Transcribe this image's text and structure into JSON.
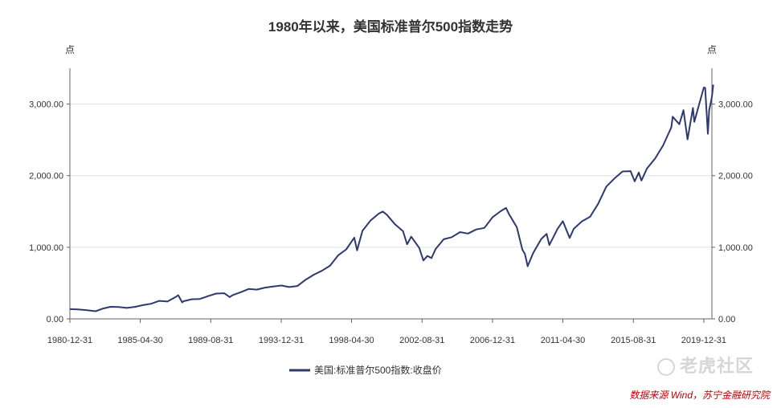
{
  "chart_data": {
    "type": "line",
    "title": "1980年以来，美国标准普尔500指数走势",
    "y_unit_left": "点",
    "y_unit_right": "点",
    "ylim": [
      0,
      3500
    ],
    "y_ticks": [
      0,
      1000,
      2000,
      3000
    ],
    "y_tick_labels": [
      "0.00",
      "1,000.00",
      "2,000.00",
      "3,000.00"
    ],
    "x_range": [
      "1980-12-31",
      "2020-06-30"
    ],
    "x_ticks": [
      "1980-12-31",
      "1985-04-30",
      "1989-08-31",
      "1993-12-31",
      "1998-04-30",
      "2002-08-31",
      "2006-12-31",
      "2011-04-30",
      "2015-08-31",
      "2019-12-31"
    ],
    "grid": "horizontal",
    "legend_position": "bottom-center",
    "series": [
      {
        "name": "美国:标准普尔500指数:收盘价",
        "color": "#2e3a6e",
        "points": [
          [
            "1980-12-31",
            136
          ],
          [
            "1981-06-30",
            131
          ],
          [
            "1981-12-31",
            122
          ],
          [
            "1982-07-31",
            107
          ],
          [
            "1982-12-31",
            141
          ],
          [
            "1983-06-30",
            168
          ],
          [
            "1983-12-31",
            165
          ],
          [
            "1984-06-30",
            153
          ],
          [
            "1984-12-31",
            167
          ],
          [
            "1985-06-30",
            192
          ],
          [
            "1985-12-31",
            211
          ],
          [
            "1986-06-30",
            251
          ],
          [
            "1986-12-31",
            242
          ],
          [
            "1987-06-30",
            304
          ],
          [
            "1987-08-31",
            330
          ],
          [
            "1987-11-30",
            230
          ],
          [
            "1987-12-31",
            247
          ],
          [
            "1988-06-30",
            274
          ],
          [
            "1988-12-31",
            278
          ],
          [
            "1989-06-30",
            318
          ],
          [
            "1989-12-31",
            353
          ],
          [
            "1990-06-30",
            358
          ],
          [
            "1990-10-31",
            304
          ],
          [
            "1990-12-31",
            330
          ],
          [
            "1991-06-30",
            371
          ],
          [
            "1991-12-31",
            417
          ],
          [
            "1992-06-30",
            408
          ],
          [
            "1992-12-31",
            436
          ],
          [
            "1993-06-30",
            451
          ],
          [
            "1993-12-31",
            466
          ],
          [
            "1994-06-30",
            444
          ],
          [
            "1994-12-31",
            459
          ],
          [
            "1995-06-30",
            545
          ],
          [
            "1995-12-31",
            616
          ],
          [
            "1996-06-30",
            671
          ],
          [
            "1996-12-31",
            741
          ],
          [
            "1997-06-30",
            885
          ],
          [
            "1997-12-31",
            970
          ],
          [
            "1998-06-30",
            1134
          ],
          [
            "1998-08-31",
            957
          ],
          [
            "1998-12-31",
            1229
          ],
          [
            "1999-06-30",
            1373
          ],
          [
            "1999-12-31",
            1469
          ],
          [
            "2000-03-31",
            1499
          ],
          [
            "2000-06-30",
            1455
          ],
          [
            "2000-12-31",
            1320
          ],
          [
            "2001-06-30",
            1224
          ],
          [
            "2001-09-30",
            1041
          ],
          [
            "2001-12-31",
            1148
          ],
          [
            "2002-06-30",
            990
          ],
          [
            "2002-09-30",
            815
          ],
          [
            "2002-12-31",
            880
          ],
          [
            "2003-03-31",
            848
          ],
          [
            "2003-06-30",
            975
          ],
          [
            "2003-12-31",
            1112
          ],
          [
            "2004-06-30",
            1141
          ],
          [
            "2004-12-31",
            1212
          ],
          [
            "2005-06-30",
            1191
          ],
          [
            "2005-12-31",
            1248
          ],
          [
            "2006-06-30",
            1270
          ],
          [
            "2006-12-31",
            1418
          ],
          [
            "2007-06-30",
            1503
          ],
          [
            "2007-10-31",
            1549
          ],
          [
            "2007-12-31",
            1468
          ],
          [
            "2008-06-30",
            1280
          ],
          [
            "2008-10-31",
            968
          ],
          [
            "2008-12-31",
            903
          ],
          [
            "2009-02-28",
            735
          ],
          [
            "2009-06-30",
            919
          ],
          [
            "2009-12-31",
            1115
          ],
          [
            "2010-04-30",
            1187
          ],
          [
            "2010-06-30",
            1031
          ],
          [
            "2010-12-31",
            1258
          ],
          [
            "2011-04-30",
            1364
          ],
          [
            "2011-09-30",
            1131
          ],
          [
            "2011-12-31",
            1258
          ],
          [
            "2012-06-30",
            1362
          ],
          [
            "2012-12-31",
            1426
          ],
          [
            "2013-06-30",
            1606
          ],
          [
            "2013-12-31",
            1848
          ],
          [
            "2014-06-30",
            1960
          ],
          [
            "2014-12-31",
            2059
          ],
          [
            "2015-06-30",
            2063
          ],
          [
            "2015-09-30",
            1920
          ],
          [
            "2015-12-31",
            2044
          ],
          [
            "2016-02-29",
            1932
          ],
          [
            "2016-06-30",
            2099
          ],
          [
            "2016-12-31",
            2239
          ],
          [
            "2017-06-30",
            2423
          ],
          [
            "2017-12-31",
            2674
          ],
          [
            "2018-01-31",
            2824
          ],
          [
            "2018-06-30",
            2718
          ],
          [
            "2018-09-30",
            2914
          ],
          [
            "2018-12-31",
            2507
          ],
          [
            "2019-04-30",
            2946
          ],
          [
            "2019-05-31",
            2752
          ],
          [
            "2019-12-31",
            3231
          ],
          [
            "2020-01-31",
            3226
          ],
          [
            "2020-03-31",
            2585
          ],
          [
            "2020-04-30",
            2912
          ],
          [
            "2020-06-30",
            3100
          ],
          [
            "2020-07-31",
            3271
          ]
        ]
      }
    ]
  },
  "source_note": "数据来源 Wind，苏宁金融研究院",
  "watermark": "老虎社区"
}
